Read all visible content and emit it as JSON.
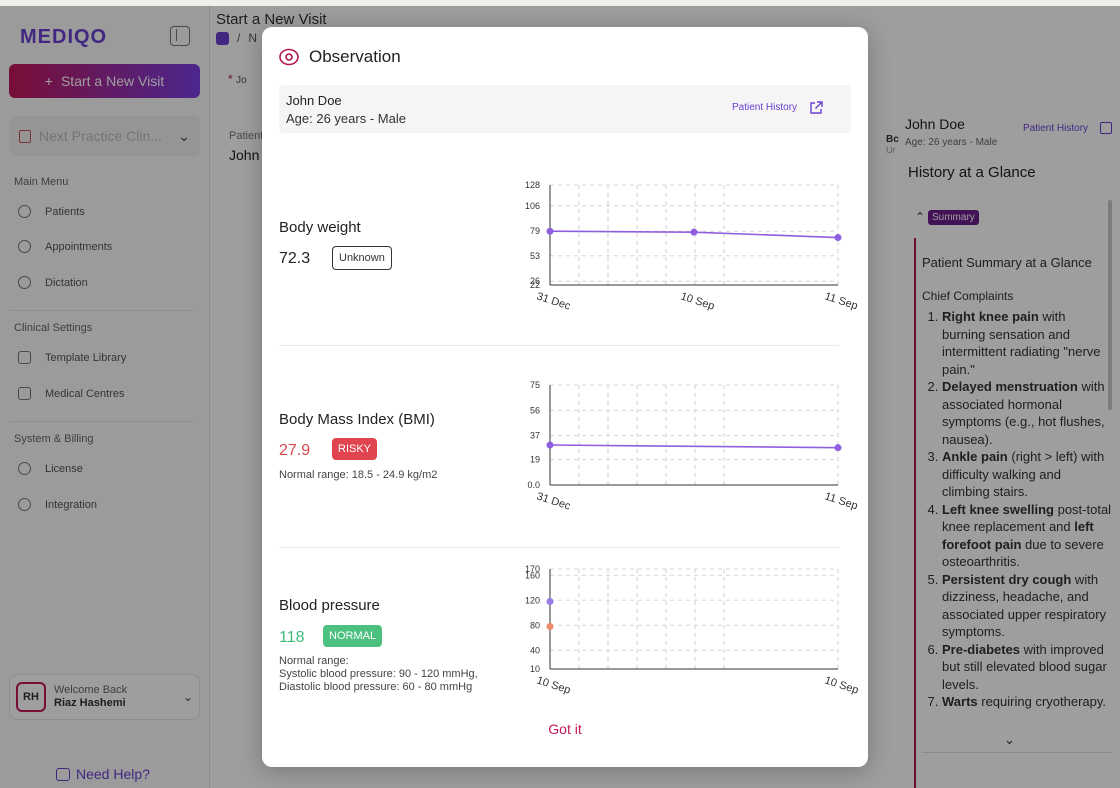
{
  "app": {
    "logo": "MEDIQO",
    "page_title": "Start a New Visit",
    "breadcrumb_sep": "/",
    "breadcrumb_item": "N",
    "new_visit_label": "Start a New Visit",
    "clinic_select": "Next Practice Clin...",
    "sections": {
      "main_menu": "Main Menu",
      "clinical_settings": "Clinical Settings",
      "system_billing": "System & Billing"
    },
    "nav": {
      "patients": "Patients",
      "appointments": "Appointments",
      "dictation": "Dictation",
      "template_library": "Template Library",
      "medical_centres": "Medical Centres",
      "license": "License",
      "integration": "Integration"
    },
    "user": {
      "initials": "RH",
      "welcome": "Welcome Back",
      "name": "Riaz Hashemi"
    },
    "need_help": "Need Help?",
    "bg_patient_label": "Patient",
    "bg_patient_name": "John",
    "bg_tab": "Jo"
  },
  "right_panel": {
    "name": "John Doe",
    "age": "Age: 26 years - Male",
    "bc": "Bc",
    "bc_sub": "Ur",
    "patient_history": "Patient History",
    "history_title": "History at a Glance",
    "summary_tag": "Summary",
    "summary_heading": "Patient Summary at a Glance",
    "chief_complaints": "Chief Complaints",
    "complaints": [
      {
        "bold": "Right knee pain",
        "rest": " with burning sensation and intermittent radiating \"nerve pain.\""
      },
      {
        "bold": "Delayed menstruation",
        "rest": " with associated hormonal symptoms (e.g., hot flushes, nausea)."
      },
      {
        "bold": "Ankle pain",
        "rest": " (right > left) with difficulty walking and climbing stairs."
      },
      {
        "bold": "Left knee swelling",
        "rest": " post-total knee replacement and ",
        "bold2": "left forefoot pain",
        "rest2": " due to severe osteoarthritis."
      },
      {
        "bold": "Persistent dry cough",
        "rest": " with dizziness, headache, and associated upper respiratory symptoms."
      },
      {
        "bold": "Pre-diabetes",
        "rest": " with improved but still elevated blood sugar levels."
      },
      {
        "bold": "Warts",
        "rest": " requiring cryotherapy."
      }
    ]
  },
  "modal": {
    "title": "Observation",
    "patient_name": "John Doe",
    "patient_age": "Age: 26 years - Male",
    "patient_history": "Patient History",
    "got_it": "Got it",
    "observations": [
      {
        "label": "Body weight",
        "value": "72.3",
        "badge": "Unknown",
        "badge_style": "outline",
        "value_color": "#222222",
        "range": ""
      },
      {
        "label": "Body Mass Index (BMI)",
        "value": "27.9",
        "badge": "RISKY",
        "badge_style": "risky",
        "value_color": "#d9474f",
        "range": "Normal range: 18.5 - 24.9 kg/m2"
      },
      {
        "label": "Blood pressure",
        "value": "118",
        "badge": "NORMAL",
        "badge_style": "normal",
        "value_color": "#43b97a",
        "range": "Normal range:\nSystolic blood pressure: 90 - 120 mmHg,\nDiastolic blood pressure: 60 - 80 mmHg"
      }
    ]
  },
  "chart_data": [
    {
      "type": "line",
      "yticks": [
        "128",
        "106",
        "79",
        "53",
        "26",
        "22"
      ],
      "ytick_values": [
        128,
        106,
        79,
        53,
        26,
        22
      ],
      "ylim": [
        22,
        128
      ],
      "x": [
        "31 Dec",
        "10 Sep",
        "11 Sep"
      ],
      "series": [
        {
          "values": [
            79,
            78,
            72.3
          ],
          "color": "#8f5fe0"
        }
      ]
    },
    {
      "type": "line",
      "yticks": [
        "75",
        "56",
        "37",
        "19",
        "0.0"
      ],
      "ytick_values": [
        75,
        56,
        37,
        19,
        0
      ],
      "ylim": [
        0,
        75
      ],
      "x": [
        "31 Dec",
        "11 Sep"
      ],
      "series": [
        {
          "values": [
            30,
            28
          ],
          "color": "#8f5fe0"
        }
      ]
    },
    {
      "type": "scatter",
      "yticks": [
        "170",
        "160",
        "120",
        "80",
        "40",
        "10"
      ],
      "ytick_values": [
        170,
        160,
        120,
        80,
        40,
        10
      ],
      "ylim": [
        10,
        170
      ],
      "x": [
        "10 Sep",
        "10 Sep"
      ],
      "series": [
        {
          "values": [
            118
          ],
          "color": "#9a7ae8"
        },
        {
          "values": [
            78
          ],
          "color": "#ef8a6a"
        }
      ]
    }
  ]
}
